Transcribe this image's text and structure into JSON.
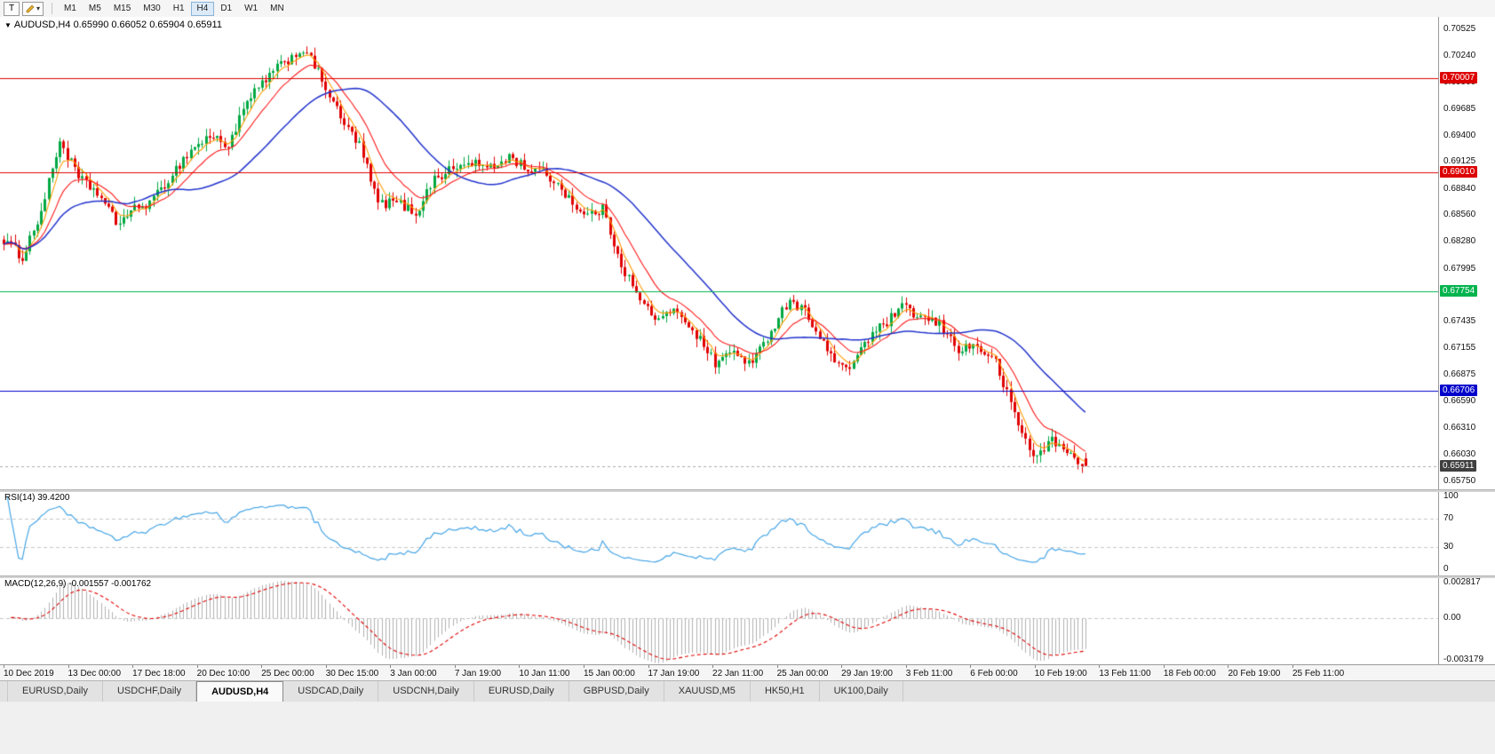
{
  "toolbar": {
    "chart_type_label": "T",
    "color_tool_caret": "▾",
    "timeframes": [
      "M1",
      "M5",
      "M15",
      "M30",
      "H1",
      "H4",
      "D1",
      "W1",
      "MN"
    ],
    "active_timeframe": "H4"
  },
  "main_chart": {
    "title_symbol": "AUDUSD,H4",
    "title_ohlc": "0.65990 0.66052 0.65904 0.65911",
    "collapse_arrow": "▼",
    "last_candle": {
      "open": 0.6599,
      "high": 0.66052,
      "low": 0.65904,
      "close": 0.65911
    },
    "price_axis_labels": [
      "0.70525",
      "0.70240",
      "0.69960",
      "0.69685",
      "0.69400",
      "0.69125",
      "0.68840",
      "0.68560",
      "0.68280",
      "0.67995",
      "0.67715",
      "0.67435",
      "0.67155",
      "0.66875",
      "0.66590",
      "0.66310",
      "0.66030",
      "0.65750"
    ],
    "scale": {
      "top_price": 0.70657,
      "bottom_price": 0.65663
    },
    "levels": [
      {
        "label": "0.70007",
        "price": 0.70007,
        "color": "#dd0000"
      },
      {
        "label": "0.69010",
        "price": 0.6901,
        "color": "#dd0000"
      },
      {
        "label": "0.67754",
        "price": 0.67754,
        "color": "#00b34d"
      },
      {
        "label": "0.66706",
        "price": 0.66706,
        "color": "#0000cc"
      }
    ],
    "current_price": {
      "label": "0.65911",
      "price": 0.65911,
      "badge_color": "#3f3f3f"
    },
    "candle_up_color": "#00a843",
    "candle_down_color": "#e00000",
    "moving_averages": [
      {
        "type": "ema",
        "period": 5,
        "color": "#ff9d00"
      },
      {
        "type": "ema",
        "period": 13,
        "color": "#ff1a1a"
      },
      {
        "type": "sma",
        "period": 34,
        "color": "#2233cc"
      }
    ]
  },
  "rsi_panel": {
    "label": "RSI(14) 39.4200",
    "period": 14,
    "current_value": 39.42,
    "axis_labels": [
      "100",
      "70",
      "30",
      "0"
    ],
    "axis_values": [
      100,
      70,
      30,
      0
    ],
    "guide_levels": [
      70,
      30
    ],
    "line_color": "#46a5e5"
  },
  "macd_panel": {
    "label": "MACD(12,26,9) -0.001557 -0.001762",
    "fast": 12,
    "slow": 26,
    "signal_period": 9,
    "main_value": -0.001557,
    "signal_value": -0.001762,
    "axis_labels": [
      "0.002817",
      "0.00",
      "-0.003179"
    ],
    "axis_values": [
      0.002817,
      0,
      -0.003179
    ],
    "scale": {
      "top": 0.003,
      "bottom": -0.00345
    },
    "histogram_color": "#b0b0b0",
    "signal_color": "#e00000"
  },
  "time_axis": {
    "labels": [
      "10 Dec 2019",
      "13 Dec 00:00",
      "17 Dec 18:00",
      "20 Dec 10:00",
      "25 Dec 00:00",
      "30 Dec 15:00",
      "3 Jan 00:00",
      "7 Jan 19:00",
      "10 Jan 11:00",
      "15 Jan 00:00",
      "17 Jan 19:00",
      "22 Jan 11:00",
      "25 Jan 00:00",
      "29 Jan 19:00",
      "3 Feb 11:00",
      "6 Feb 00:00",
      "10 Feb 19:00",
      "13 Feb 11:00",
      "18 Feb 00:00",
      "20 Feb 19:00",
      "25 Feb 11:00"
    ]
  },
  "tabs": {
    "items": [
      "EURUSD,Daily",
      "USDCHF,Daily",
      "AUDUSD,H4",
      "USDCAD,Daily",
      "USDCNH,Daily",
      "EURUSD,Daily",
      "GBPUSD,Daily",
      "XAUUSD,M5",
      "HK50,H1",
      "UK100,Daily"
    ],
    "active_index": 2
  },
  "chart_data": {
    "type": "candlestick",
    "symbol": "AUDUSD",
    "timeframe": "H4",
    "title": "AUDUSD,H4 0.65990 0.66052 0.65904 0.65911",
    "x_range": [
      "10 Dec 2019",
      "25 Feb 11:00"
    ],
    "y_range": [
      0.65663,
      0.70657
    ],
    "num_candles": 290,
    "waypoint_step": 5,
    "close_waypoints": [
      0.683,
      0.6812,
      0.686,
      0.6935,
      0.6895,
      0.688,
      0.6848,
      0.6862,
      0.6872,
      0.69,
      0.6925,
      0.694,
      0.693,
      0.6975,
      0.7,
      0.7018,
      0.7032,
      0.7,
      0.6958,
      0.693,
      0.6868,
      0.687,
      0.6858,
      0.6895,
      0.6905,
      0.6912,
      0.6905,
      0.6918,
      0.6905,
      0.69,
      0.688,
      0.6855,
      0.6862,
      0.6805,
      0.6765,
      0.6745,
      0.6756,
      0.673,
      0.67,
      0.6712,
      0.6698,
      0.6735,
      0.6768,
      0.675,
      0.6712,
      0.669,
      0.6722,
      0.674,
      0.6758,
      0.6748,
      0.674,
      0.6715,
      0.6718,
      0.67,
      0.6645,
      0.66,
      0.6618,
      0.6602,
      0.65911
    ],
    "last_candle": {
      "open": 0.6599,
      "high": 0.66052,
      "low": 0.65904,
      "close": 0.65911
    },
    "overlays": {
      "horizontal_lines": [
        0.70007,
        0.6901,
        0.67754,
        0.66706
      ],
      "current_price": 0.65911
    },
    "indicators": [
      {
        "name": "RSI",
        "period": 14,
        "last_value": 39.42,
        "levels": [
          70,
          30
        ]
      },
      {
        "name": "MACD",
        "fast": 12,
        "slow": 26,
        "signal": 9,
        "last_main": -0.001557,
        "last_signal": -0.001762
      }
    ],
    "legend_position": "none",
    "grid": "off"
  }
}
